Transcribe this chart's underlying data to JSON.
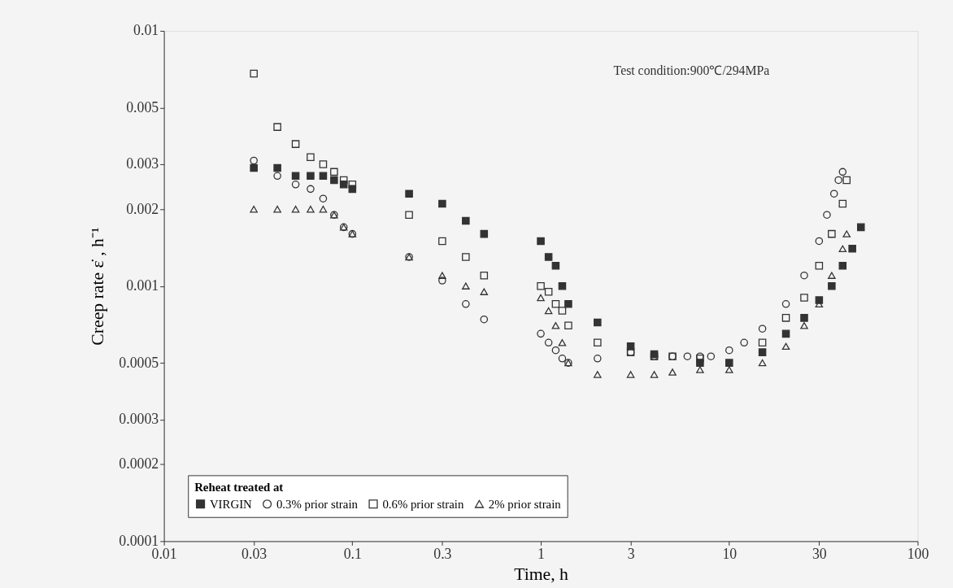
{
  "chart_data": {
    "type": "scatter",
    "xlabel": "Time, h",
    "ylabel": "Creep rate ε̇ , h⁻¹",
    "log": "xy",
    "legend": "bottom left",
    "legend_title": "Reheat treated at",
    "grid": false,
    "xlim": [
      0.01,
      100
    ],
    "xticks": [
      0.01,
      0.03,
      0.1,
      0.3,
      1,
      3,
      10,
      30,
      100
    ],
    "ylim": [
      0.0001,
      0.01
    ],
    "yticks": [
      0.0001,
      0.0002,
      0.0003,
      0.0005,
      0.001,
      0.002,
      0.003,
      0.005,
      0.01
    ],
    "annotations": [
      "Test condition:900℃/294MPa"
    ],
    "series": [
      {
        "name": "VIRGIN",
        "color": "#333333",
        "marker": "square_filled",
        "x": [
          0.03,
          0.04,
          0.05,
          0.06,
          0.07,
          0.08,
          0.09,
          0.1,
          0.2,
          0.3,
          0.4,
          0.5,
          1.0,
          1.1,
          1.2,
          1.3,
          1.4,
          2,
          3,
          4,
          5,
          7,
          10,
          15,
          20,
          25,
          30,
          35,
          40,
          45,
          50
        ],
        "values": [
          0.0029,
          0.0029,
          0.0027,
          0.0027,
          0.0027,
          0.0026,
          0.0025,
          0.0024,
          0.0023,
          0.0021,
          0.0018,
          0.0016,
          0.0015,
          0.0013,
          0.0012,
          0.001,
          0.00085,
          0.00072,
          0.00058,
          0.00054,
          null,
          0.0005,
          0.0005,
          0.00055,
          0.00065,
          0.00075,
          0.00088,
          0.001,
          0.0012,
          0.0014,
          0.0017
        ]
      },
      {
        "name": "0.3% prior strain",
        "color": "#333333",
        "marker": "circle",
        "x": [
          0.03,
          0.04,
          0.05,
          0.06,
          0.07,
          0.08,
          0.09,
          0.1,
          0.2,
          0.3,
          0.4,
          0.5,
          1.0,
          1.1,
          1.2,
          1.3,
          1.4,
          2,
          3,
          4,
          5,
          6,
          7,
          8,
          9,
          10,
          12,
          15,
          20,
          25,
          30,
          33,
          36,
          38,
          40
        ],
        "values": [
          0.0031,
          0.0027,
          0.0025,
          0.0024,
          0.0022,
          0.0019,
          0.0017,
          0.0016,
          0.0013,
          0.00105,
          0.00085,
          0.00074,
          0.00065,
          0.0006,
          0.00056,
          0.00052,
          0.0005,
          0.00052,
          0.00055,
          0.00053,
          0.00053,
          0.00053,
          0.00053,
          0.00053,
          null,
          0.00056,
          0.0006,
          0.00068,
          0.00085,
          0.0011,
          0.0015,
          0.0019,
          0.0023,
          0.0026,
          0.0028
        ]
      },
      {
        "name": "0.6% prior strain",
        "color": "#333333",
        "marker": "square",
        "x": [
          0.03,
          0.04,
          0.05,
          0.06,
          0.07,
          0.08,
          0.09,
          0.1,
          0.2,
          0.3,
          0.4,
          0.5,
          1.0,
          1.1,
          1.2,
          1.3,
          1.4,
          2,
          3,
          4,
          5,
          7,
          10,
          15,
          20,
          25,
          30,
          35,
          40,
          42
        ],
        "values": [
          0.0068,
          0.0042,
          0.0036,
          0.0032,
          0.003,
          0.0028,
          0.0026,
          0.0025,
          0.0019,
          0.0015,
          0.0013,
          0.0011,
          0.001,
          0.00095,
          0.00085,
          0.0008,
          0.0007,
          0.0006,
          0.00055,
          0.00053,
          0.00053,
          0.00052,
          null,
          0.0006,
          0.00075,
          0.0009,
          0.0012,
          0.0016,
          0.0021,
          0.0026
        ]
      },
      {
        "name": "2% prior strain",
        "color": "#333333",
        "marker": "triangle",
        "x": [
          0.03,
          0.04,
          0.05,
          0.06,
          0.07,
          0.08,
          0.09,
          0.1,
          0.2,
          0.3,
          0.4,
          0.5,
          1.0,
          1.1,
          1.2,
          1.3,
          1.4,
          2,
          3,
          4,
          5,
          7,
          10,
          15,
          20,
          25,
          30,
          35,
          40,
          42
        ],
        "values": [
          0.002,
          0.002,
          0.002,
          0.002,
          0.002,
          0.0019,
          0.0017,
          0.0016,
          0.0013,
          0.0011,
          0.001,
          0.00095,
          0.0009,
          0.0008,
          0.0007,
          0.0006,
          0.0005,
          0.00045,
          0.00045,
          0.00045,
          0.00046,
          0.00047,
          0.00047,
          0.0005,
          0.00058,
          0.0007,
          0.00085,
          0.0011,
          0.0014,
          0.0016
        ]
      }
    ]
  }
}
